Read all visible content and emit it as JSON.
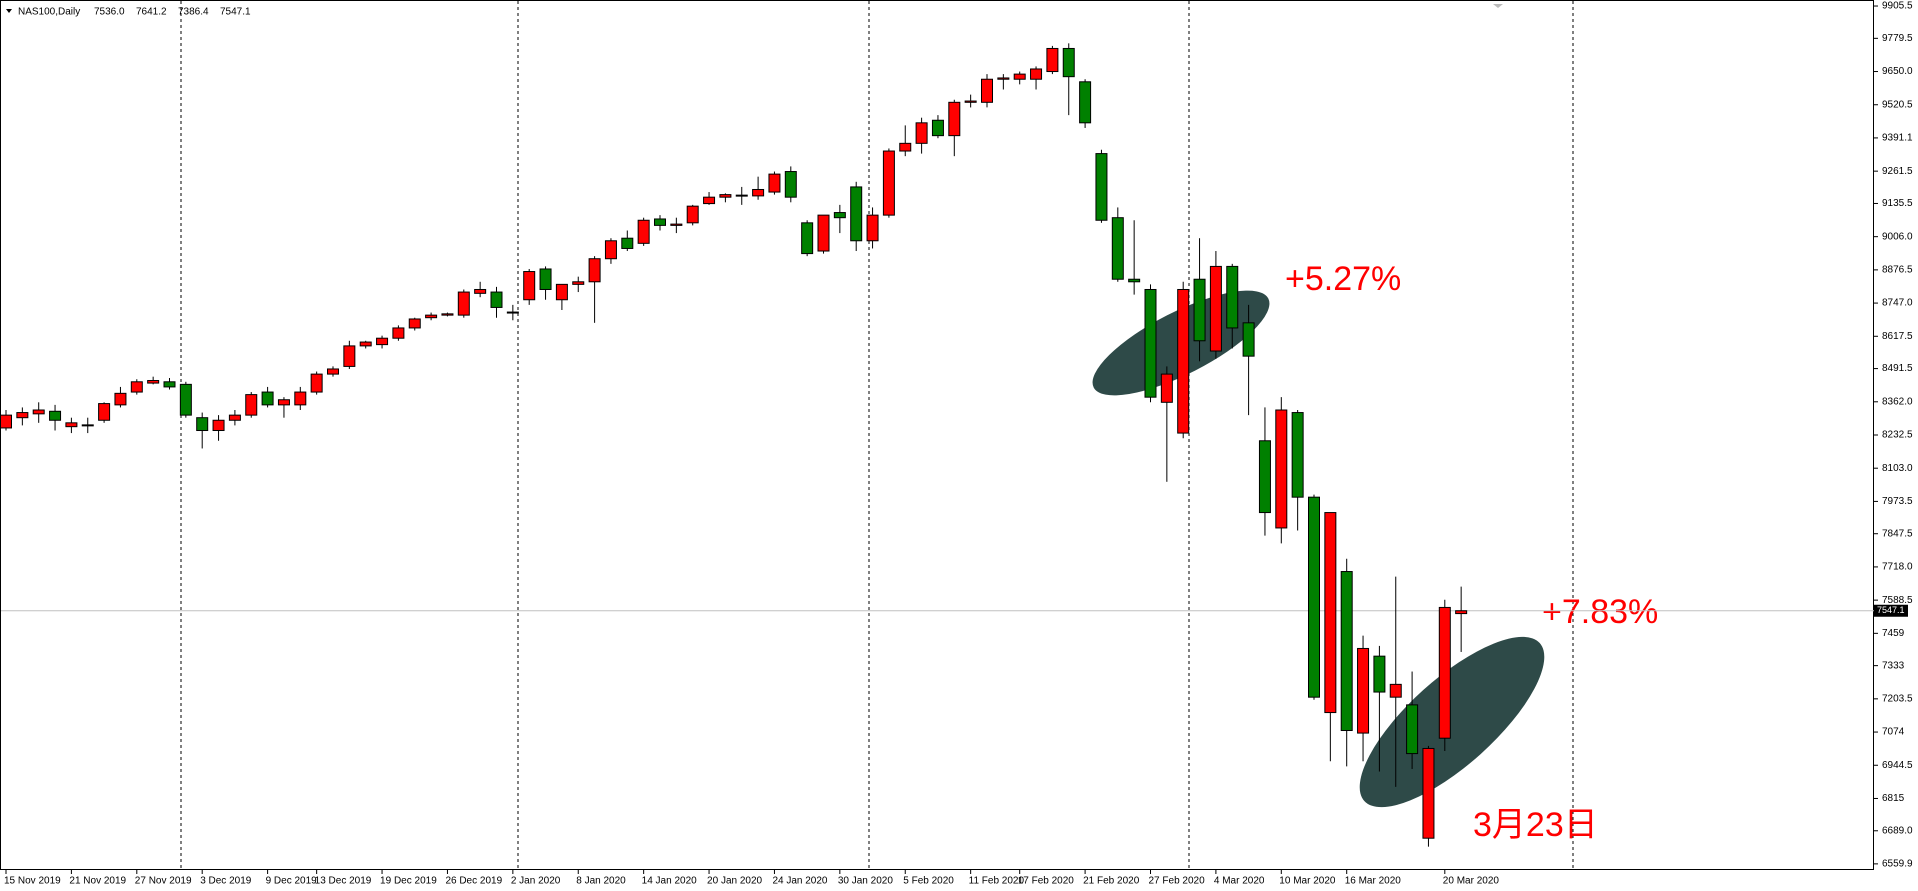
{
  "chart_data": {
    "type": "candlestick",
    "title": "NAS100,Daily",
    "header_values": [
      "7536.0",
      "7641.2",
      "7386.4",
      "7547.1"
    ],
    "categories": [
      "15 Nov 2019",
      null,
      null,
      null,
      "21 Nov 2019",
      null,
      null,
      null,
      "27 Nov 2019",
      null,
      null,
      null,
      "3 Dec 2019",
      null,
      null,
      null,
      "9 Dec 2019",
      null,
      null,
      "13 Dec 2019",
      null,
      null,
      null,
      "19 Dec 2019",
      null,
      null,
      null,
      "26 Dec 2019",
      null,
      null,
      null,
      "2 Jan 2020",
      null,
      null,
      null,
      "8 Jan 2020",
      null,
      null,
      null,
      "14 Jan 2020",
      null,
      null,
      null,
      "20 Jan 2020",
      null,
      null,
      null,
      "24 Jan 2020",
      null,
      null,
      null,
      "30 Jan 2020",
      null,
      null,
      null,
      "5 Feb 2020",
      null,
      null,
      null,
      "11 Feb 2020",
      null,
      null,
      "17 Feb 2020",
      null,
      null,
      null,
      "21 Feb 2020",
      null,
      null,
      null,
      "27 Feb 2020",
      null,
      null,
      null,
      "4 Mar 2020",
      null,
      null,
      null,
      "10 Mar 2020",
      null,
      null,
      null,
      "16 Mar 2020",
      null,
      null,
      null,
      null,
      null,
      "20 Mar 2020",
      null
    ],
    "open": [
      8260,
      8300,
      8315,
      8325,
      8265,
      8270,
      8290,
      8350,
      8400,
      8435,
      8440,
      8430,
      8300,
      8250,
      8290,
      8310,
      8400,
      8350,
      8350,
      8400,
      8470,
      8500,
      8580,
      8585,
      8610,
      8650,
      8690,
      8700,
      8700,
      8785,
      8790,
      8710,
      8760,
      8880,
      8760,
      8820,
      8830,
      8920,
      9000,
      8980,
      9075,
      9050,
      9060,
      9135,
      9160,
      9165,
      9165,
      9180,
      9260,
      9060,
      8950,
      9100,
      9200,
      8990,
      9090,
      9340,
      9370,
      9460,
      9400,
      9530,
      9530,
      9620,
      9620,
      9620,
      9650,
      9740,
      9610,
      9330,
      9080,
      8840,
      8800,
      8360,
      8240,
      8840,
      8560,
      8890,
      8670,
      8210,
      7870,
      8320,
      7990,
      7150,
      7700,
      7070,
      7370,
      7210,
      7180,
      6660,
      7050,
      7536.0
    ],
    "high": [
      8330,
      8340,
      8360,
      8350,
      8300,
      8300,
      8360,
      8420,
      8450,
      8460,
      8455,
      8440,
      8320,
      8310,
      8330,
      8400,
      8420,
      8380,
      8420,
      8480,
      8500,
      8600,
      8600,
      8620,
      8660,
      8690,
      8710,
      8710,
      8800,
      8830,
      8810,
      8740,
      8880,
      8890,
      8820,
      8850,
      8930,
      9000,
      9030,
      9080,
      9090,
      9080,
      9130,
      9180,
      9175,
      9200,
      9240,
      9260,
      9280,
      9070,
      9090,
      9130,
      9220,
      9120,
      9350,
      9440,
      9470,
      9480,
      9540,
      9560,
      9640,
      9640,
      9650,
      9670,
      9750,
      9760,
      9620,
      9345,
      9120,
      9070,
      8820,
      8500,
      8830,
      9000,
      8950,
      8900,
      8740,
      8340,
      8380,
      8330,
      8000,
      7930,
      7750,
      7450,
      7410,
      7680,
      7310,
      7020,
      7590,
      7641.2
    ],
    "low": [
      8250,
      8270,
      8280,
      8250,
      8240,
      8240,
      8280,
      8340,
      8390,
      8430,
      8410,
      8300,
      8180,
      8210,
      8270,
      8300,
      8340,
      8300,
      8330,
      8390,
      8460,
      8490,
      8570,
      8570,
      8600,
      8640,
      8680,
      8695,
      8690,
      8770,
      8690,
      8680,
      8740,
      8760,
      8720,
      8790,
      8670,
      8900,
      8950,
      8970,
      9030,
      9020,
      9050,
      9130,
      9140,
      9130,
      9150,
      9170,
      9140,
      8930,
      8940,
      9020,
      8950,
      8960,
      9080,
      9320,
      9330,
      9390,
      9320,
      9510,
      9510,
      9580,
      9600,
      9580,
      9640,
      9480,
      9430,
      9060,
      8830,
      8780,
      8360,
      8050,
      8220,
      8520,
      8530,
      8570,
      8310,
      7840,
      7810,
      7860,
      7200,
      6960,
      6940,
      6960,
      6920,
      6860,
      6930,
      6627,
      7000,
      7386.4
    ],
    "close": [
      8310,
      8320,
      8330,
      8290,
      8280,
      8272,
      8355,
      8395,
      8440,
      8445,
      8420,
      8310,
      8250,
      8290,
      8310,
      8390,
      8350,
      8370,
      8400,
      8470,
      8490,
      8580,
      8595,
      8610,
      8650,
      8685,
      8700,
      8705,
      8790,
      8800,
      8730,
      8712,
      8870,
      8800,
      8820,
      8830,
      8920,
      8990,
      8960,
      9070,
      9050,
      9055,
      9125,
      9160,
      9170,
      9168,
      9190,
      9250,
      9160,
      8940,
      9090,
      9080,
      8990,
      9090,
      9340,
      9370,
      9450,
      9400,
      9530,
      9535,
      9620,
      9625,
      9640,
      9660,
      9740,
      9630,
      9450,
      9070,
      8840,
      8830,
      8380,
      8470,
      8800,
      8600,
      8890,
      8650,
      8540,
      7930,
      8330,
      7990,
      7210,
      7930,
      7080,
      7400,
      7230,
      7260,
      6990,
      7010,
      7560,
      7547.1
    ],
    "up_color": "#ff0000",
    "down_color": "#008000",
    "last_price": 7547.1,
    "ylim": [
      6536,
      9929
    ],
    "yticks": [
      {
        "value": 6559.9,
        "label": "6559.9"
      },
      {
        "value": 6689,
        "label": "6689.0"
      },
      6815,
      6944.5,
      7074,
      7203.5,
      7333,
      7459,
      7588.5,
      {
        "value": 7718,
        "label": "7718.0"
      },
      7847.5,
      7973.5,
      {
        "value": 8103,
        "label": "8103.0"
      },
      8232.5,
      {
        "value": 8362,
        "label": "8362.0"
      },
      8491.5,
      8617.5,
      {
        "value": 8747,
        "label": "8747.0"
      },
      8876.5,
      {
        "value": 9006,
        "label": "9006.0"
      },
      9135.5,
      9261.5,
      9391.1,
      9520.5,
      {
        "value": 9650,
        "label": "9650.0"
      },
      9779.5,
      9905.5
    ],
    "annotations": [
      "+5.27%",
      "+7.83%",
      "3月23日"
    ]
  }
}
